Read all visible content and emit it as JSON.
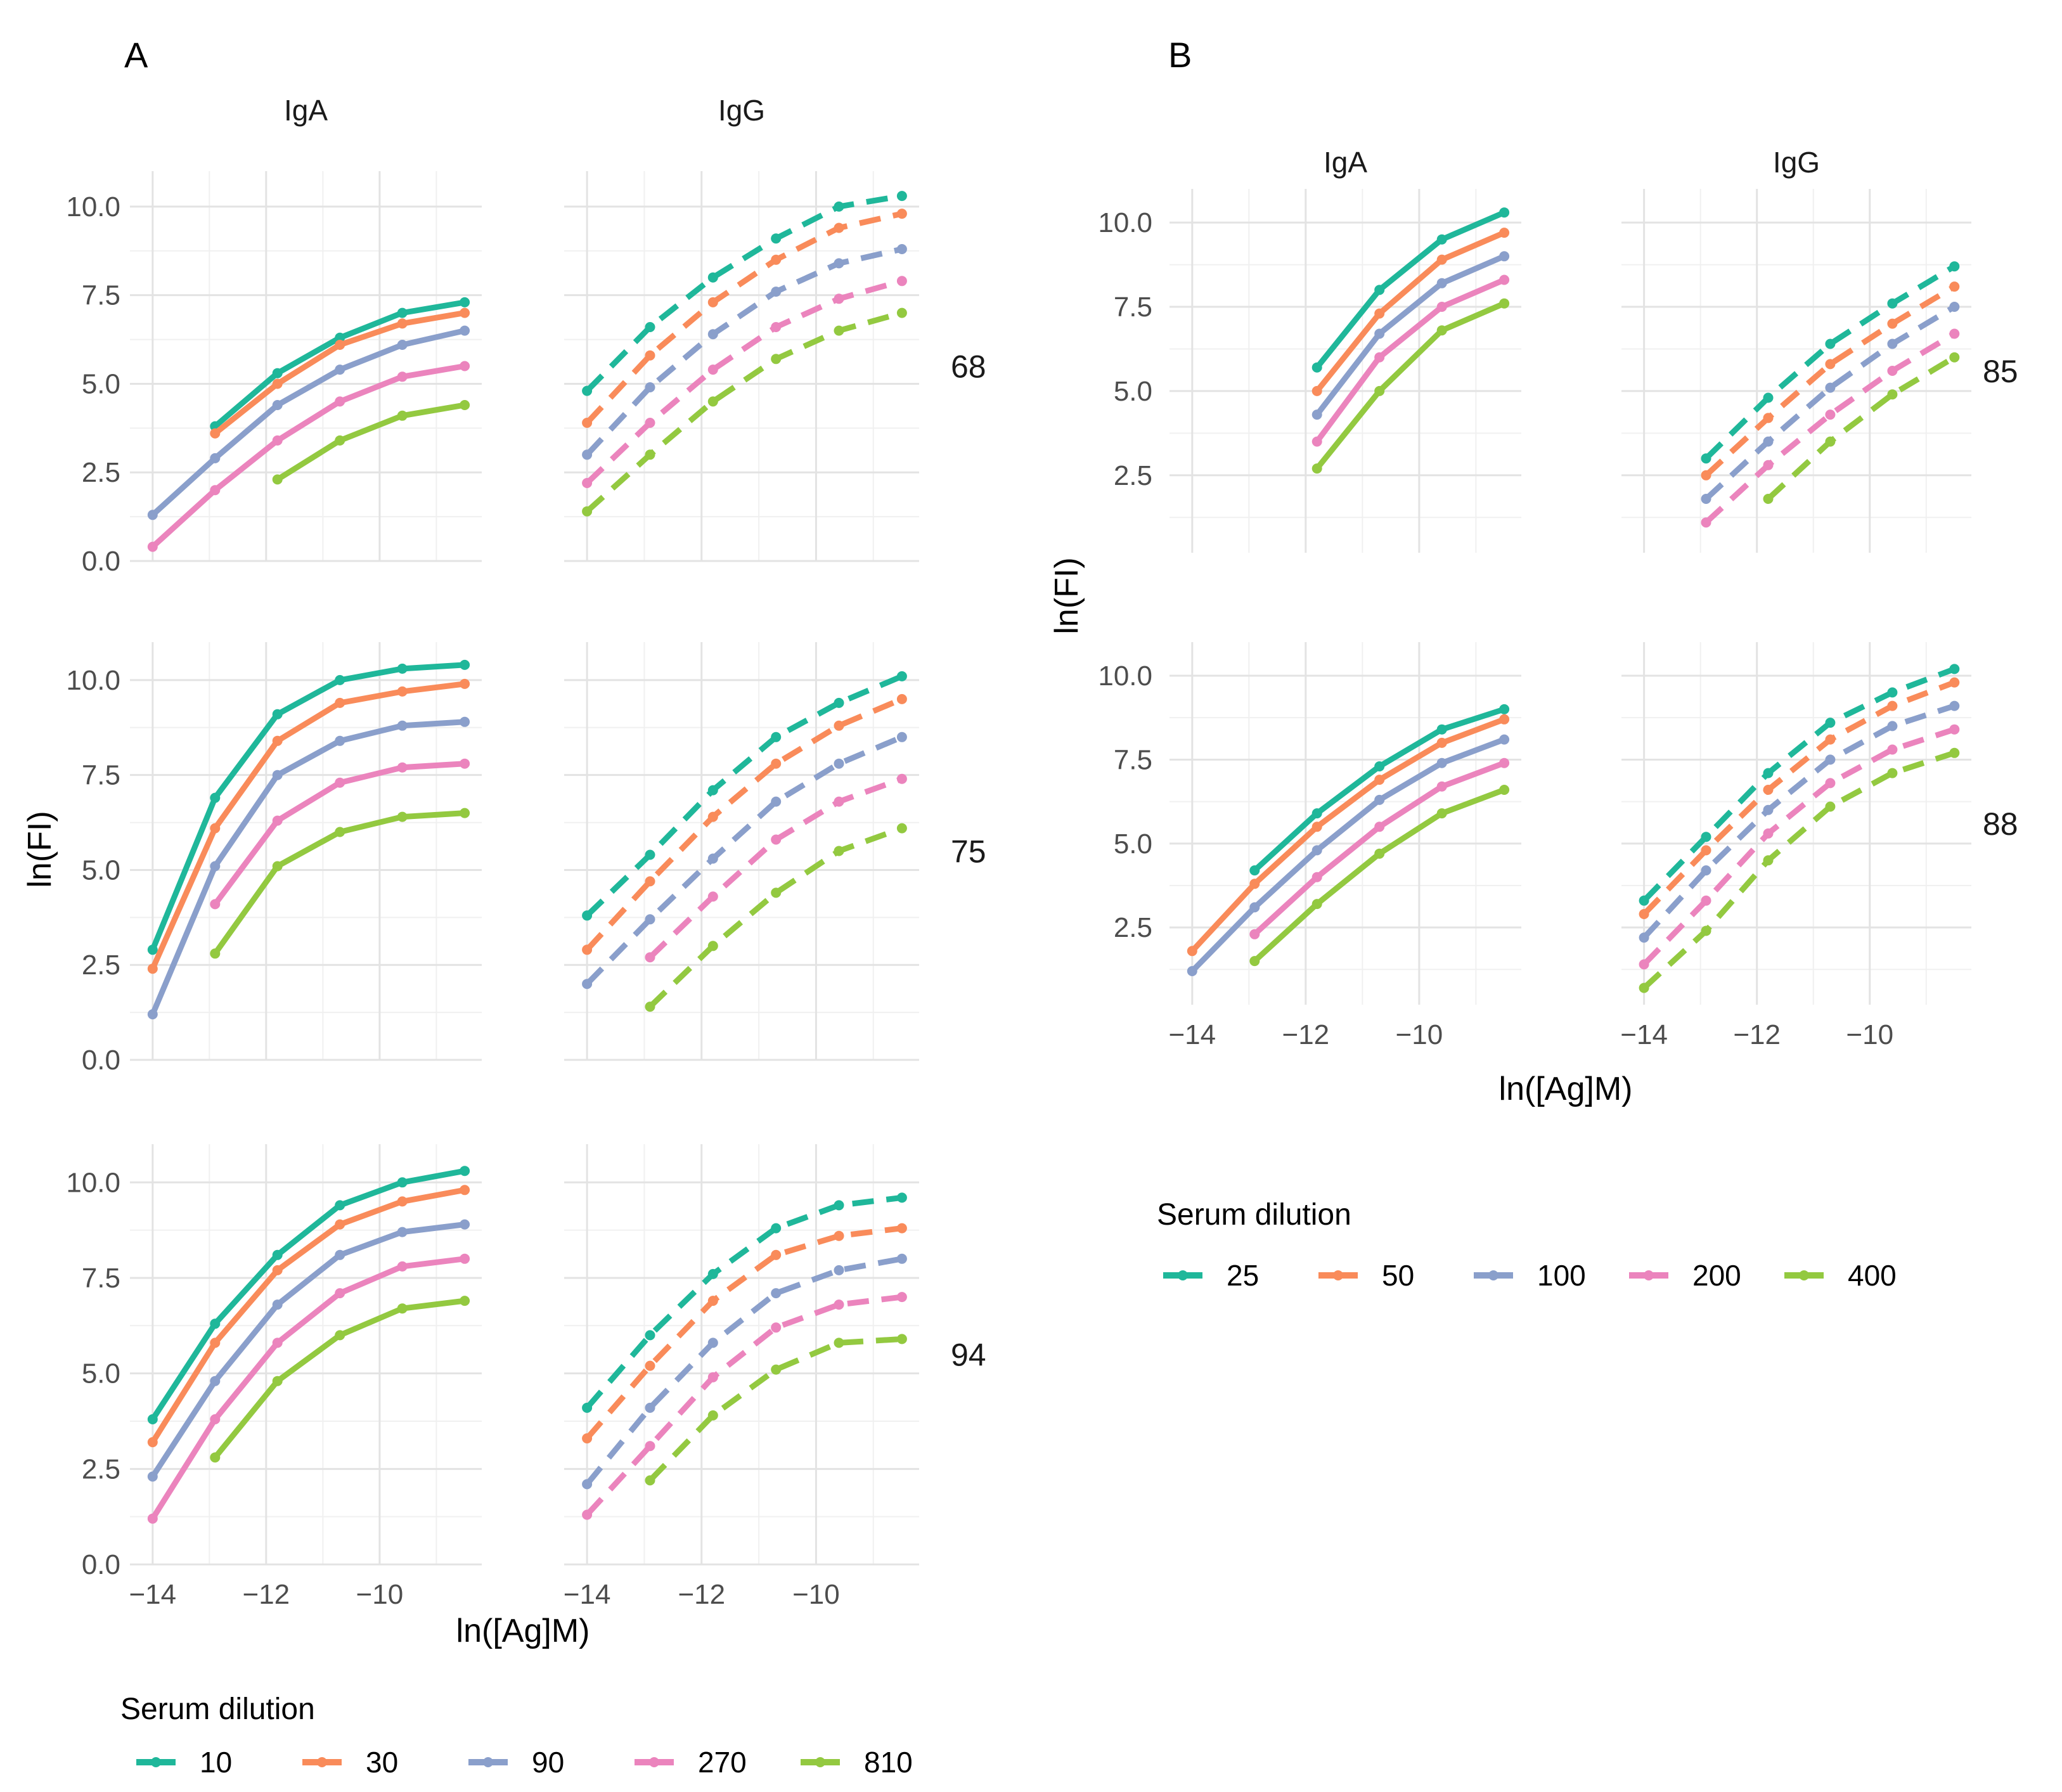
{
  "figure": {
    "panel_a_label": "A",
    "panel_b_label": "B",
    "ylabel": "ln(FI)",
    "xlabel": "ln([Ag]M)",
    "strip_iga": "IgA",
    "strip_igg": "IgG",
    "legend_title": "Serum dilution"
  },
  "chart_data": [
    {
      "panel": "A",
      "type": "line",
      "title": "A",
      "xlabel": "ln([Ag]M)",
      "ylabel": "ln(FI)",
      "xlim": [
        -14.4,
        -8.2
      ],
      "ylim": [
        0,
        11
      ],
      "xticks": [
        -14,
        -12,
        -10
      ],
      "yticks": [
        0.0,
        2.5,
        5.0,
        7.5,
        10.0
      ],
      "ytick_labels": [
        "0.0",
        "2.5",
        "5.0",
        "7.5",
        "10.0"
      ],
      "xtick_labels": [
        "−14",
        "−12",
        "−10"
      ],
      "facet_columns": [
        "IgA",
        "IgG"
      ],
      "facet_rows": [
        "68",
        "75",
        "94"
      ],
      "line_styles": {
        "IgA": "solid",
        "IgG": "dashed"
      },
      "legend": {
        "title": "Serum dilution",
        "position": "bottom-left",
        "items": [
          {
            "label": "10",
            "color": "#1fb79a"
          },
          {
            "label": "30",
            "color": "#f98b5a"
          },
          {
            "label": "90",
            "color": "#8a9fcb"
          },
          {
            "label": "270",
            "color": "#eb84bd"
          },
          {
            "label": "810",
            "color": "#93c940"
          }
        ]
      },
      "x": [
        -14,
        -12.9,
        -11.8,
        -10.7,
        -9.6,
        -8.5
      ],
      "facets": [
        {
          "row": "68",
          "col": "IgA",
          "series": [
            {
              "name": "10",
              "values": [
                null,
                3.8,
                5.3,
                6.3,
                7.0,
                7.3
              ]
            },
            {
              "name": "30",
              "values": [
                null,
                3.6,
                5.0,
                6.1,
                6.7,
                7.0
              ]
            },
            {
              "name": "90",
              "values": [
                1.3,
                2.9,
                4.4,
                5.4,
                6.1,
                6.5
              ]
            },
            {
              "name": "270",
              "values": [
                0.4,
                2.0,
                3.4,
                4.5,
                5.2,
                5.5
              ]
            },
            {
              "name": "810",
              "values": [
                null,
                null,
                2.3,
                3.4,
                4.1,
                4.4
              ]
            }
          ]
        },
        {
          "row": "68",
          "col": "IgG",
          "series": [
            {
              "name": "10",
              "values": [
                4.8,
                6.6,
                8.0,
                9.1,
                10.0,
                10.3
              ]
            },
            {
              "name": "30",
              "values": [
                3.9,
                5.8,
                7.3,
                8.5,
                9.4,
                9.8
              ]
            },
            {
              "name": "90",
              "values": [
                3.0,
                4.9,
                6.4,
                7.6,
                8.4,
                8.8
              ]
            },
            {
              "name": "270",
              "values": [
                2.2,
                3.9,
                5.4,
                6.6,
                7.4,
                7.9
              ]
            },
            {
              "name": "810",
              "values": [
                1.4,
                3.0,
                4.5,
                5.7,
                6.5,
                7.0
              ]
            }
          ]
        },
        {
          "row": "75",
          "col": "IgA",
          "series": [
            {
              "name": "10",
              "values": [
                2.9,
                6.9,
                9.1,
                10.0,
                10.3,
                10.4
              ]
            },
            {
              "name": "30",
              "values": [
                2.4,
                6.1,
                8.4,
                9.4,
                9.7,
                9.9
              ]
            },
            {
              "name": "90",
              "values": [
                1.2,
                5.1,
                7.5,
                8.4,
                8.8,
                8.9
              ]
            },
            {
              "name": "270",
              "values": [
                null,
                4.1,
                6.3,
                7.3,
                7.7,
                7.8
              ]
            },
            {
              "name": "810",
              "values": [
                null,
                2.8,
                5.1,
                6.0,
                6.4,
                6.5
              ]
            }
          ]
        },
        {
          "row": "75",
          "col": "IgG",
          "series": [
            {
              "name": "10",
              "values": [
                3.8,
                5.4,
                7.1,
                8.5,
                9.4,
                10.1
              ]
            },
            {
              "name": "30",
              "values": [
                2.9,
                4.7,
                6.4,
                7.8,
                8.8,
                9.5
              ]
            },
            {
              "name": "90",
              "values": [
                2.0,
                3.7,
                5.3,
                6.8,
                7.8,
                8.5
              ]
            },
            {
              "name": "270",
              "values": [
                null,
                2.7,
                4.3,
                5.8,
                6.8,
                7.4
              ]
            },
            {
              "name": "810",
              "values": [
                null,
                1.4,
                3.0,
                4.4,
                5.5,
                6.1
              ]
            }
          ]
        },
        {
          "row": "94",
          "col": "IgA",
          "series": [
            {
              "name": "10",
              "values": [
                3.8,
                6.3,
                8.1,
                9.4,
                10.0,
                10.3
              ]
            },
            {
              "name": "30",
              "values": [
                3.2,
                5.8,
                7.7,
                8.9,
                9.5,
                9.8
              ]
            },
            {
              "name": "90",
              "values": [
                2.3,
                4.8,
                6.8,
                8.1,
                8.7,
                8.9
              ]
            },
            {
              "name": "270",
              "values": [
                1.2,
                3.8,
                5.8,
                7.1,
                7.8,
                8.0
              ]
            },
            {
              "name": "810",
              "values": [
                null,
                2.8,
                4.8,
                6.0,
                6.7,
                6.9
              ]
            }
          ]
        },
        {
          "row": "94",
          "col": "IgG",
          "series": [
            {
              "name": "10",
              "values": [
                4.1,
                6.0,
                7.6,
                8.8,
                9.4,
                9.6
              ]
            },
            {
              "name": "30",
              "values": [
                3.3,
                5.2,
                6.9,
                8.1,
                8.6,
                8.8
              ]
            },
            {
              "name": "90",
              "values": [
                2.1,
                4.1,
                5.8,
                7.1,
                7.7,
                8.0
              ]
            },
            {
              "name": "270",
              "values": [
                1.3,
                3.1,
                4.9,
                6.2,
                6.8,
                7.0
              ]
            },
            {
              "name": "810",
              "values": [
                null,
                2.2,
                3.9,
                5.1,
                5.8,
                5.9
              ]
            }
          ]
        }
      ]
    },
    {
      "panel": "B",
      "type": "line",
      "title": "B",
      "xlabel": "ln([Ag]M)",
      "ylabel": "ln(FI)",
      "xlim": [
        -14.4,
        -8.2
      ],
      "ylim": [
        0.2,
        11
      ],
      "xticks": [
        -14,
        -12,
        -10
      ],
      "yticks": [
        2.5,
        5.0,
        7.5,
        10.0
      ],
      "ytick_labels": [
        "2.5",
        "5.0",
        "7.5",
        "10.0"
      ],
      "xtick_labels": [
        "−14",
        "−12",
        "−10"
      ],
      "facet_columns": [
        "IgA",
        "IgG"
      ],
      "facet_rows": [
        "85",
        "88"
      ],
      "line_styles": {
        "IgA": "solid",
        "IgG": "dashed"
      },
      "legend": {
        "title": "Serum dilution",
        "position": "right",
        "items": [
          {
            "label": "25",
            "color": "#1fb79a"
          },
          {
            "label": "50",
            "color": "#f98b5a"
          },
          {
            "label": "100",
            "color": "#8a9fcb"
          },
          {
            "label": "200",
            "color": "#eb84bd"
          },
          {
            "label": "400",
            "color": "#93c940"
          }
        ]
      },
      "x": [
        -14,
        -12.9,
        -11.8,
        -10.7,
        -9.6,
        -8.5
      ],
      "facets": [
        {
          "row": "85",
          "col": "IgA",
          "series": [
            {
              "name": "25",
              "values": [
                null,
                null,
                5.7,
                8.0,
                9.5,
                10.3
              ]
            },
            {
              "name": "50",
              "values": [
                null,
                null,
                5.0,
                7.3,
                8.9,
                9.7
              ]
            },
            {
              "name": "100",
              "values": [
                null,
                null,
                4.3,
                6.7,
                8.2,
                9.0
              ]
            },
            {
              "name": "200",
              "values": [
                null,
                null,
                3.5,
                6.0,
                7.5,
                8.3
              ]
            },
            {
              "name": "400",
              "values": [
                null,
                null,
                2.7,
                5.0,
                6.8,
                7.6
              ]
            }
          ]
        },
        {
          "row": "85",
          "col": "IgG",
          "series": [
            {
              "name": "25",
              "values": [
                null,
                3.0,
                4.8,
                6.4,
                7.6,
                8.7
              ]
            },
            {
              "name": "50",
              "values": [
                null,
                2.5,
                4.2,
                5.8,
                7.0,
                8.1
              ]
            },
            {
              "name": "100",
              "values": [
                null,
                1.8,
                3.5,
                5.1,
                6.4,
                7.5
              ]
            },
            {
              "name": "200",
              "values": [
                null,
                1.1,
                2.8,
                4.3,
                5.6,
                6.7
              ]
            },
            {
              "name": "400",
              "values": [
                null,
                null,
                1.8,
                3.5,
                4.9,
                6.0
              ]
            }
          ]
        },
        {
          "row": "88",
          "col": "IgA",
          "series": [
            {
              "name": "25",
              "values": [
                null,
                4.2,
                5.9,
                7.3,
                8.4,
                9.0
              ]
            },
            {
              "name": "50",
              "values": [
                1.8,
                3.8,
                5.5,
                6.9,
                8.0,
                8.7
              ]
            },
            {
              "name": "100",
              "values": [
                1.2,
                3.1,
                4.8,
                6.3,
                7.4,
                8.1
              ]
            },
            {
              "name": "200",
              "values": [
                null,
                2.3,
                4.0,
                5.5,
                6.7,
                7.4
              ]
            },
            {
              "name": "400",
              "values": [
                null,
                1.5,
                3.2,
                4.7,
                5.9,
                6.6
              ]
            }
          ]
        },
        {
          "row": "88",
          "col": "IgG",
          "series": [
            {
              "name": "25",
              "values": [
                3.3,
                5.2,
                7.1,
                8.6,
                9.5,
                10.2
              ]
            },
            {
              "name": "50",
              "values": [
                2.9,
                4.8,
                6.6,
                8.1,
                9.1,
                9.8
              ]
            },
            {
              "name": "100",
              "values": [
                2.2,
                4.2,
                6.0,
                7.5,
                8.5,
                9.1
              ]
            },
            {
              "name": "200",
              "values": [
                1.4,
                3.3,
                5.3,
                6.8,
                7.8,
                8.4
              ]
            },
            {
              "name": "400",
              "values": [
                0.7,
                2.4,
                4.5,
                6.1,
                7.1,
                7.7
              ]
            }
          ]
        }
      ]
    }
  ]
}
